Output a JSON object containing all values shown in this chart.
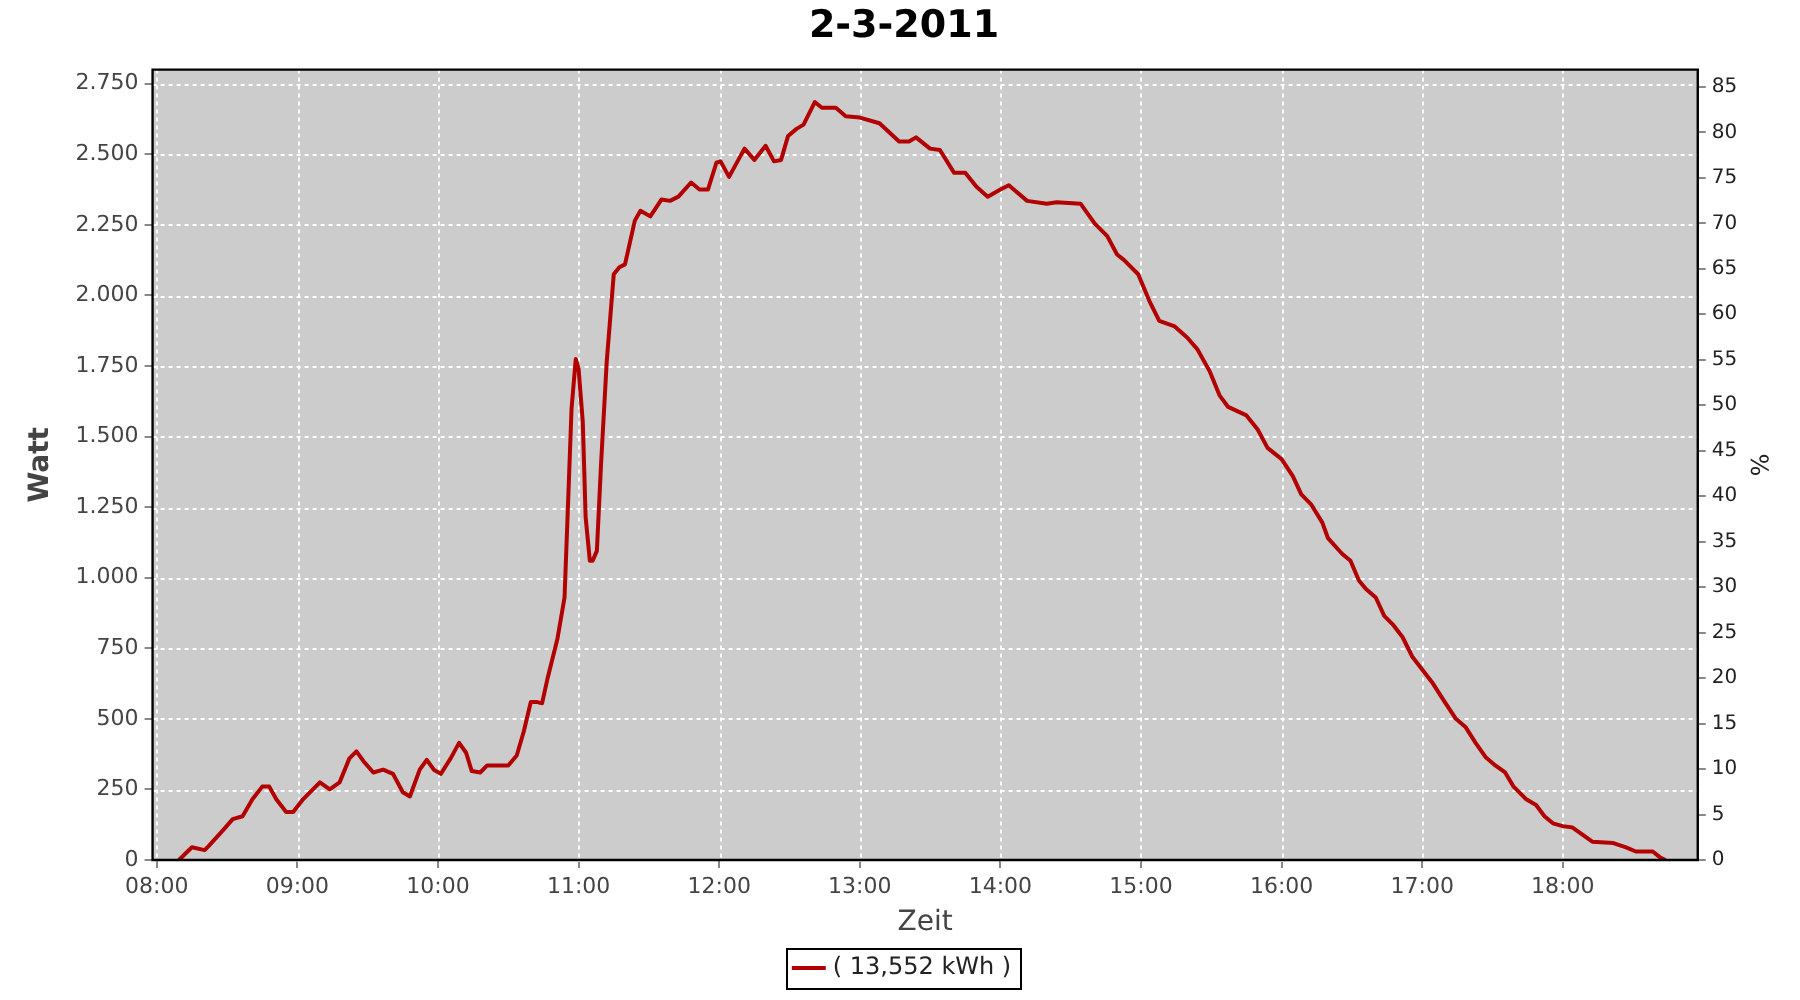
{
  "chart_data": {
    "type": "line",
    "title": "2-3-2011",
    "xlabel": "Zeit",
    "ylabel": "Watt",
    "y2label": "%",
    "x": [
      8.157,
      8.25,
      8.34,
      8.37,
      8.47,
      8.54,
      8.61,
      8.68,
      8.75,
      8.8,
      8.85,
      8.92,
      8.97,
      9.04,
      9.16,
      9.23,
      9.3,
      9.37,
      9.42,
      9.47,
      9.54,
      9.61,
      9.68,
      9.75,
      9.8,
      9.87,
      9.92,
      9.97,
      10.02,
      10.09,
      10.15,
      10.2,
      10.24,
      10.3,
      10.35,
      10.5,
      10.56,
      10.61,
      10.66,
      10.7,
      10.74,
      10.78,
      10.85,
      10.9,
      10.92,
      10.95,
      10.98,
      11.0,
      11.03,
      11.05,
      11.08,
      11.1,
      11.13,
      11.16,
      11.2,
      11.25,
      11.29,
      11.33,
      11.4,
      11.44,
      11.51,
      11.59,
      11.65,
      11.71,
      11.8,
      11.86,
      11.92,
      11.98,
      12.01,
      12.07,
      12.18,
      12.25,
      12.33,
      12.39,
      12.44,
      12.49,
      12.55,
      12.6,
      12.68,
      12.73,
      12.83,
      12.9,
      13.0,
      13.14,
      13.28,
      13.35,
      13.4,
      13.5,
      13.57,
      13.67,
      13.75,
      13.83,
      13.91,
      14.0,
      14.06,
      14.19,
      14.33,
      14.4,
      14.57,
      14.67,
      14.76,
      14.83,
      14.88,
      14.98,
      15.06,
      15.13,
      15.24,
      15.33,
      15.4,
      15.49,
      15.56,
      15.62,
      15.75,
      15.83,
      15.9,
      16.0,
      16.08,
      16.14,
      16.21,
      16.29,
      16.33,
      16.43,
      16.49,
      16.55,
      16.6,
      16.67,
      16.73,
      16.79,
      16.86,
      16.93,
      17.0,
      17.07,
      17.16,
      17.24,
      17.31,
      17.38,
      17.45,
      17.52,
      17.59,
      17.65,
      17.74,
      17.81,
      17.87,
      17.93,
      18.0,
      18.07,
      18.14,
      18.21,
      18.36,
      18.45,
      18.52,
      18.64,
      18.69,
      18.73
    ],
    "series": [
      {
        "name": "( 13,552 kWh )",
        "color": "#b30000",
        "values": [
          0,
          45,
          35,
          50,
          105,
          145,
          155,
          215,
          260,
          260,
          215,
          170,
          170,
          215,
          275,
          250,
          275,
          360,
          385,
          350,
          310,
          320,
          305,
          240,
          225,
          320,
          355,
          320,
          305,
          360,
          415,
          380,
          315,
          310,
          335,
          335,
          370,
          455,
          560,
          560,
          555,
          645,
          785,
          930,
          1195,
          1600,
          1775,
          1740,
          1550,
          1215,
          1060,
          1060,
          1095,
          1405,
          1765,
          2075,
          2100,
          2110,
          2265,
          2300,
          2280,
          2340,
          2335,
          2350,
          2400,
          2375,
          2375,
          2470,
          2475,
          2420,
          2520,
          2480,
          2530,
          2475,
          2480,
          2565,
          2590,
          2605,
          2685,
          2665,
          2665,
          2635,
          2630,
          2610,
          2545,
          2545,
          2560,
          2520,
          2515,
          2435,
          2435,
          2385,
          2350,
          2375,
          2390,
          2335,
          2325,
          2330,
          2325,
          2255,
          2210,
          2145,
          2125,
          2075,
          1980,
          1910,
          1890,
          1850,
          1810,
          1730,
          1645,
          1605,
          1575,
          1525,
          1460,
          1420,
          1360,
          1295,
          1260,
          1195,
          1140,
          1085,
          1060,
          990,
          960,
          930,
          865,
          835,
          790,
          720,
          675,
          630,
          560,
          500,
          470,
          415,
          365,
          335,
          310,
          260,
          215,
          195,
          155,
          130,
          120,
          115,
          90,
          65,
          60,
          45,
          30,
          30,
          10,
          0
        ]
      }
    ],
    "xlim": [
      7.97,
      18.96
    ],
    "xticks": [
      {
        "value": 8,
        "label": "08:00"
      },
      {
        "value": 9,
        "label": "09:00"
      },
      {
        "value": 10,
        "label": "10:00"
      },
      {
        "value": 11,
        "label": "11:00"
      },
      {
        "value": 12,
        "label": "12:00"
      },
      {
        "value": 13,
        "label": "13:00"
      },
      {
        "value": 14,
        "label": "14:00"
      },
      {
        "value": 15,
        "label": "15:00"
      },
      {
        "value": 16,
        "label": "16:00"
      },
      {
        "value": 17,
        "label": "17:00"
      },
      {
        "value": 18,
        "label": "18:00"
      }
    ],
    "ylim": [
      0,
      2800
    ],
    "yticks": [
      0,
      250,
      500,
      750,
      {
        "value": 1000,
        "label": "1.000"
      },
      {
        "value": 1250,
        "label": "1.250"
      },
      {
        "value": 1500,
        "label": "1.500"
      },
      {
        "value": 1750,
        "label": "1.750"
      },
      {
        "value": 2000,
        "label": "2.000"
      },
      {
        "value": 2250,
        "label": "2.250"
      },
      {
        "value": 2500,
        "label": "2.500"
      },
      {
        "value": 2750,
        "label": "2.750"
      }
    ],
    "y2lim": [
      0,
      86.9
    ],
    "y2ticks": [
      0,
      5,
      10,
      15,
      20,
      25,
      30,
      35,
      40,
      45,
      50,
      55,
      60,
      65,
      70,
      75,
      80,
      85
    ],
    "grid": true,
    "legend": "bottom",
    "marker": "none",
    "line_style": "solid"
  }
}
